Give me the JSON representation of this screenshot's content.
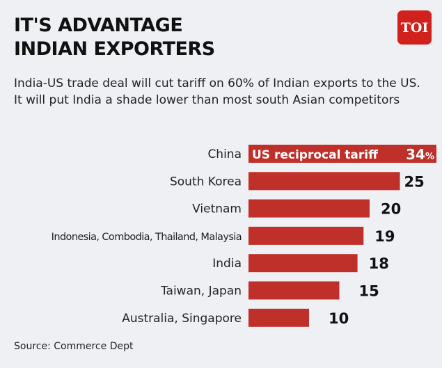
{
  "logo_text": "TOI",
  "chart_data": {
    "type": "bar",
    "orientation": "horizontal",
    "title": "IT'S ADVANTAGE INDIAN EXPORTERS",
    "subtitle": "India-US trade deal will cut tariff on 60% of Indian exports to the US. It will put India a shade lower than most south Asian competitors",
    "series_label": "US reciprocal tariff",
    "unit": "%",
    "categories": [
      "China",
      "South Korea",
      "Vietnam",
      "Indonesia, Combodia, Thailand, Malaysia",
      "India",
      "Taiwan, Japan",
      "Australia, Singapore"
    ],
    "values": [
      34,
      25,
      20,
      19,
      18,
      15,
      10
    ],
    "bar_color": "#c0302a",
    "grid": false,
    "source": "Source: Commerce Dept"
  }
}
